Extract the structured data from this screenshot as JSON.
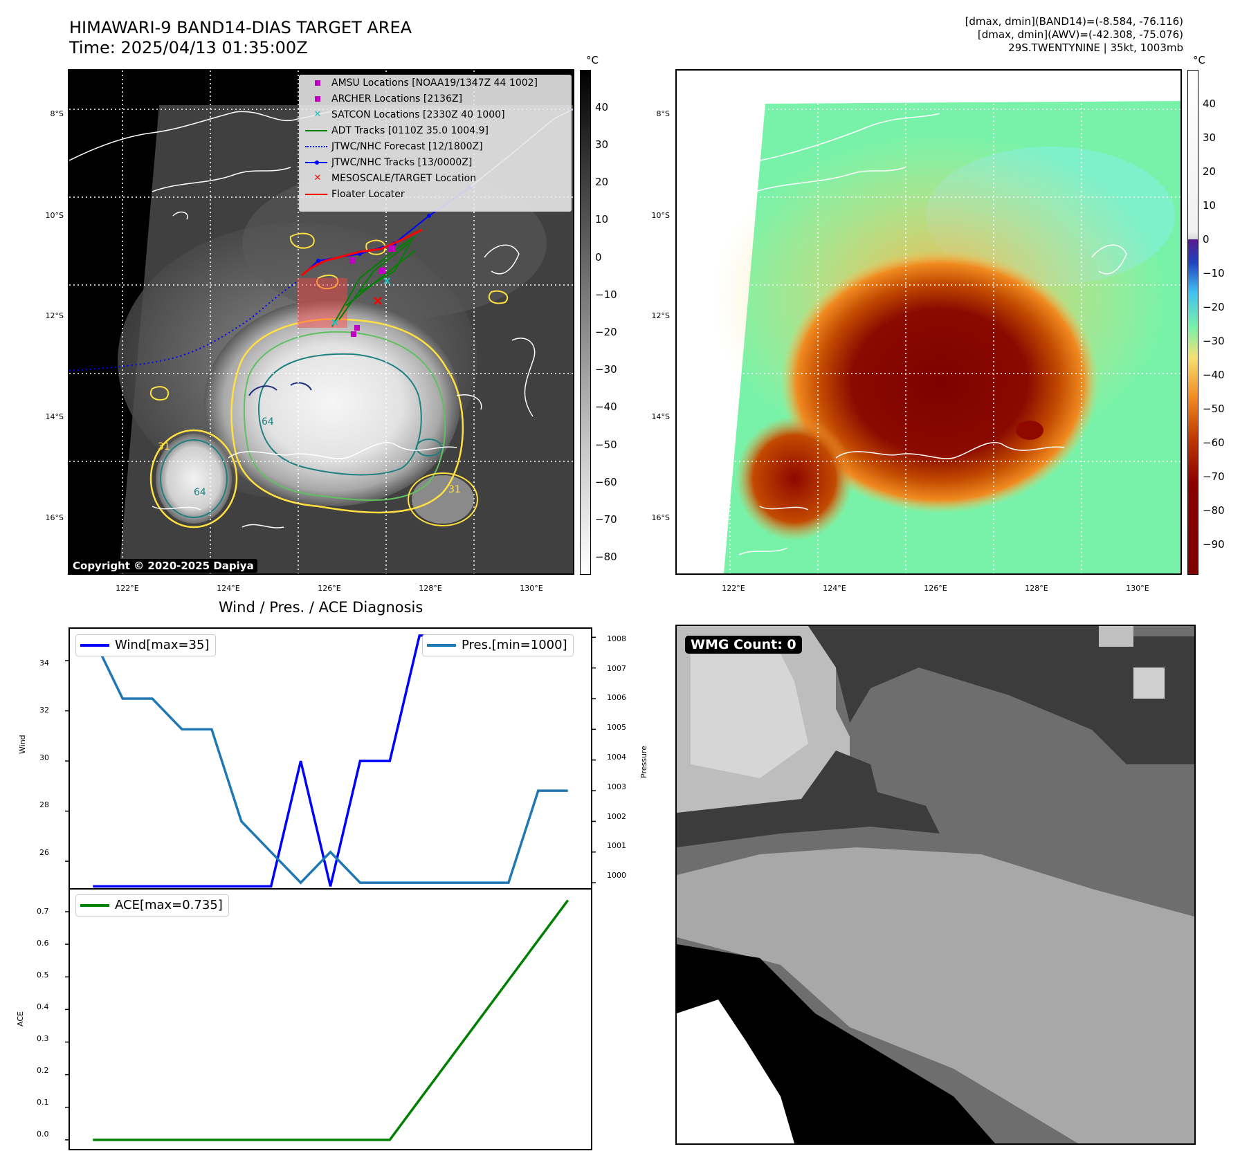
{
  "header": {
    "title_line1": "HIMAWARI-9 BAND14-DIAS TARGET AREA",
    "title_line2": "Time: 2025/04/13 01:35:00Z",
    "info_line1": "[dmax, dmin](BAND14)=(-8.584, -76.116)",
    "info_line2": "[dmax, dmin](AWV)=(-42.308, -75.076)",
    "info_line3": "29S.TWENTYNINE | 35kt, 1003mb"
  },
  "map_ir": {
    "colorbar_unit": "°C",
    "colorbar_ticks": [
      "40",
      "30",
      "20",
      "10",
      "0",
      "−10",
      "−20",
      "−30",
      "−40",
      "−50",
      "−60",
      "−70",
      "−80"
    ],
    "lat_labels": [
      "8°S",
      "10°S",
      "12°S",
      "14°S",
      "16°S"
    ],
    "lon_labels": [
      "122°E",
      "124°E",
      "126°E",
      "128°E",
      "130°E"
    ],
    "contour_labels": [
      "64",
      "64",
      "31",
      "31"
    ],
    "copyright": "Copyright © 2020-2025 Dapiya",
    "legend": [
      {
        "label": "AMSU Locations [NOAA19/1347Z 44 1002]",
        "symbol": "square",
        "color": "#c000c0"
      },
      {
        "label": "ARCHER Locations [2136Z]",
        "symbol": "square",
        "color": "#c000c0"
      },
      {
        "label": "SATCON Locations [2330Z 40 1000]",
        "symbol": "x",
        "color": "#20c0c0"
      },
      {
        "label": "ADT Tracks [0110Z 35.0 1004.9]",
        "symbol": "line",
        "color": "#008000"
      },
      {
        "label": "JTWC/NHC Forecast [12/1800Z]",
        "symbol": "dotted",
        "color": "#0000ff"
      },
      {
        "label": "JTWC/NHC Tracks [13/0000Z]",
        "symbol": "line-dot",
        "color": "#0000ff"
      },
      {
        "label": "MESOSCALE/TARGET Location",
        "symbol": "x",
        "color": "#ff0000"
      },
      {
        "label": "Floater Locater",
        "symbol": "line",
        "color": "#ff0000"
      }
    ]
  },
  "map_wv": {
    "colorbar_unit": "°C",
    "colorbar_ticks": [
      "40",
      "30",
      "20",
      "10",
      "0",
      "−10",
      "−20",
      "−30",
      "−40",
      "−50",
      "−60",
      "−70",
      "−80",
      "−90"
    ],
    "lat_labels": [
      "8°S",
      "10°S",
      "12°S",
      "14°S",
      "16°S"
    ],
    "lon_labels": [
      "122°E",
      "124°E",
      "126°E",
      "128°E",
      "130°E"
    ]
  },
  "diag": {
    "title": "Wind / Pres. / ACE Diagnosis",
    "wind_ylabel": "Wind",
    "pres_ylabel": "Pressure",
    "ace_ylabel": "ACE",
    "wind_legend": "Wind[max=35]",
    "pres_legend": "Pres.[min=1000]",
    "ace_legend": "ACE[max=0.735]",
    "wind_ticks": [
      "34",
      "32",
      "30",
      "28",
      "26"
    ],
    "pres_ticks": [
      "1008",
      "1007",
      "1006",
      "1005",
      "1004",
      "1003",
      "1002",
      "1001",
      "1000"
    ],
    "ace_ticks": [
      "0.7",
      "0.6",
      "0.5",
      "0.4",
      "0.3",
      "0.2",
      "0.1",
      "0.0"
    ]
  },
  "wmg": {
    "label": "WMG Count: 0"
  },
  "chart_data": [
    {
      "type": "line",
      "title": "Wind / Pres. / ACE Diagnosis",
      "ylabel": "Wind",
      "ylim": [
        24.9,
        35.3
      ],
      "x": [
        0,
        1,
        2,
        3,
        4,
        5,
        6,
        7,
        8,
        9,
        10,
        11,
        12,
        13,
        14,
        15,
        16
      ],
      "series": [
        {
          "name": "Wind[max=35]",
          "axis": "left",
          "color": "#0000ff",
          "values": [
            25,
            25,
            25,
            25,
            25,
            25,
            25,
            30,
            25,
            30,
            30,
            35,
            35,
            35,
            35,
            35,
            35
          ]
        },
        {
          "name": "Pres.[min=1000]",
          "axis": "right",
          "color": "#1f77b4",
          "values": [
            1008,
            1006,
            1006,
            1005,
            1005,
            1002,
            1001,
            1000,
            1001,
            1000,
            1000,
            1000,
            1000,
            1000,
            1000,
            1003,
            1003
          ]
        }
      ],
      "y2label": "Pressure",
      "y2lim": [
        999.8,
        1008.3
      ]
    },
    {
      "type": "line",
      "ylabel": "ACE",
      "ylim": [
        -0.03,
        0.77
      ],
      "x": [
        0,
        1,
        2,
        3,
        4,
        5,
        6,
        7,
        8,
        9,
        10,
        11,
        12,
        13,
        14,
        15,
        16
      ],
      "series": [
        {
          "name": "ACE[max=0.735]",
          "color": "#008000",
          "values": [
            0,
            0,
            0,
            0,
            0,
            0,
            0,
            0,
            0,
            0,
            0,
            0.1225,
            0.245,
            0.3675,
            0.49,
            0.6125,
            0.735
          ]
        }
      ]
    }
  ]
}
